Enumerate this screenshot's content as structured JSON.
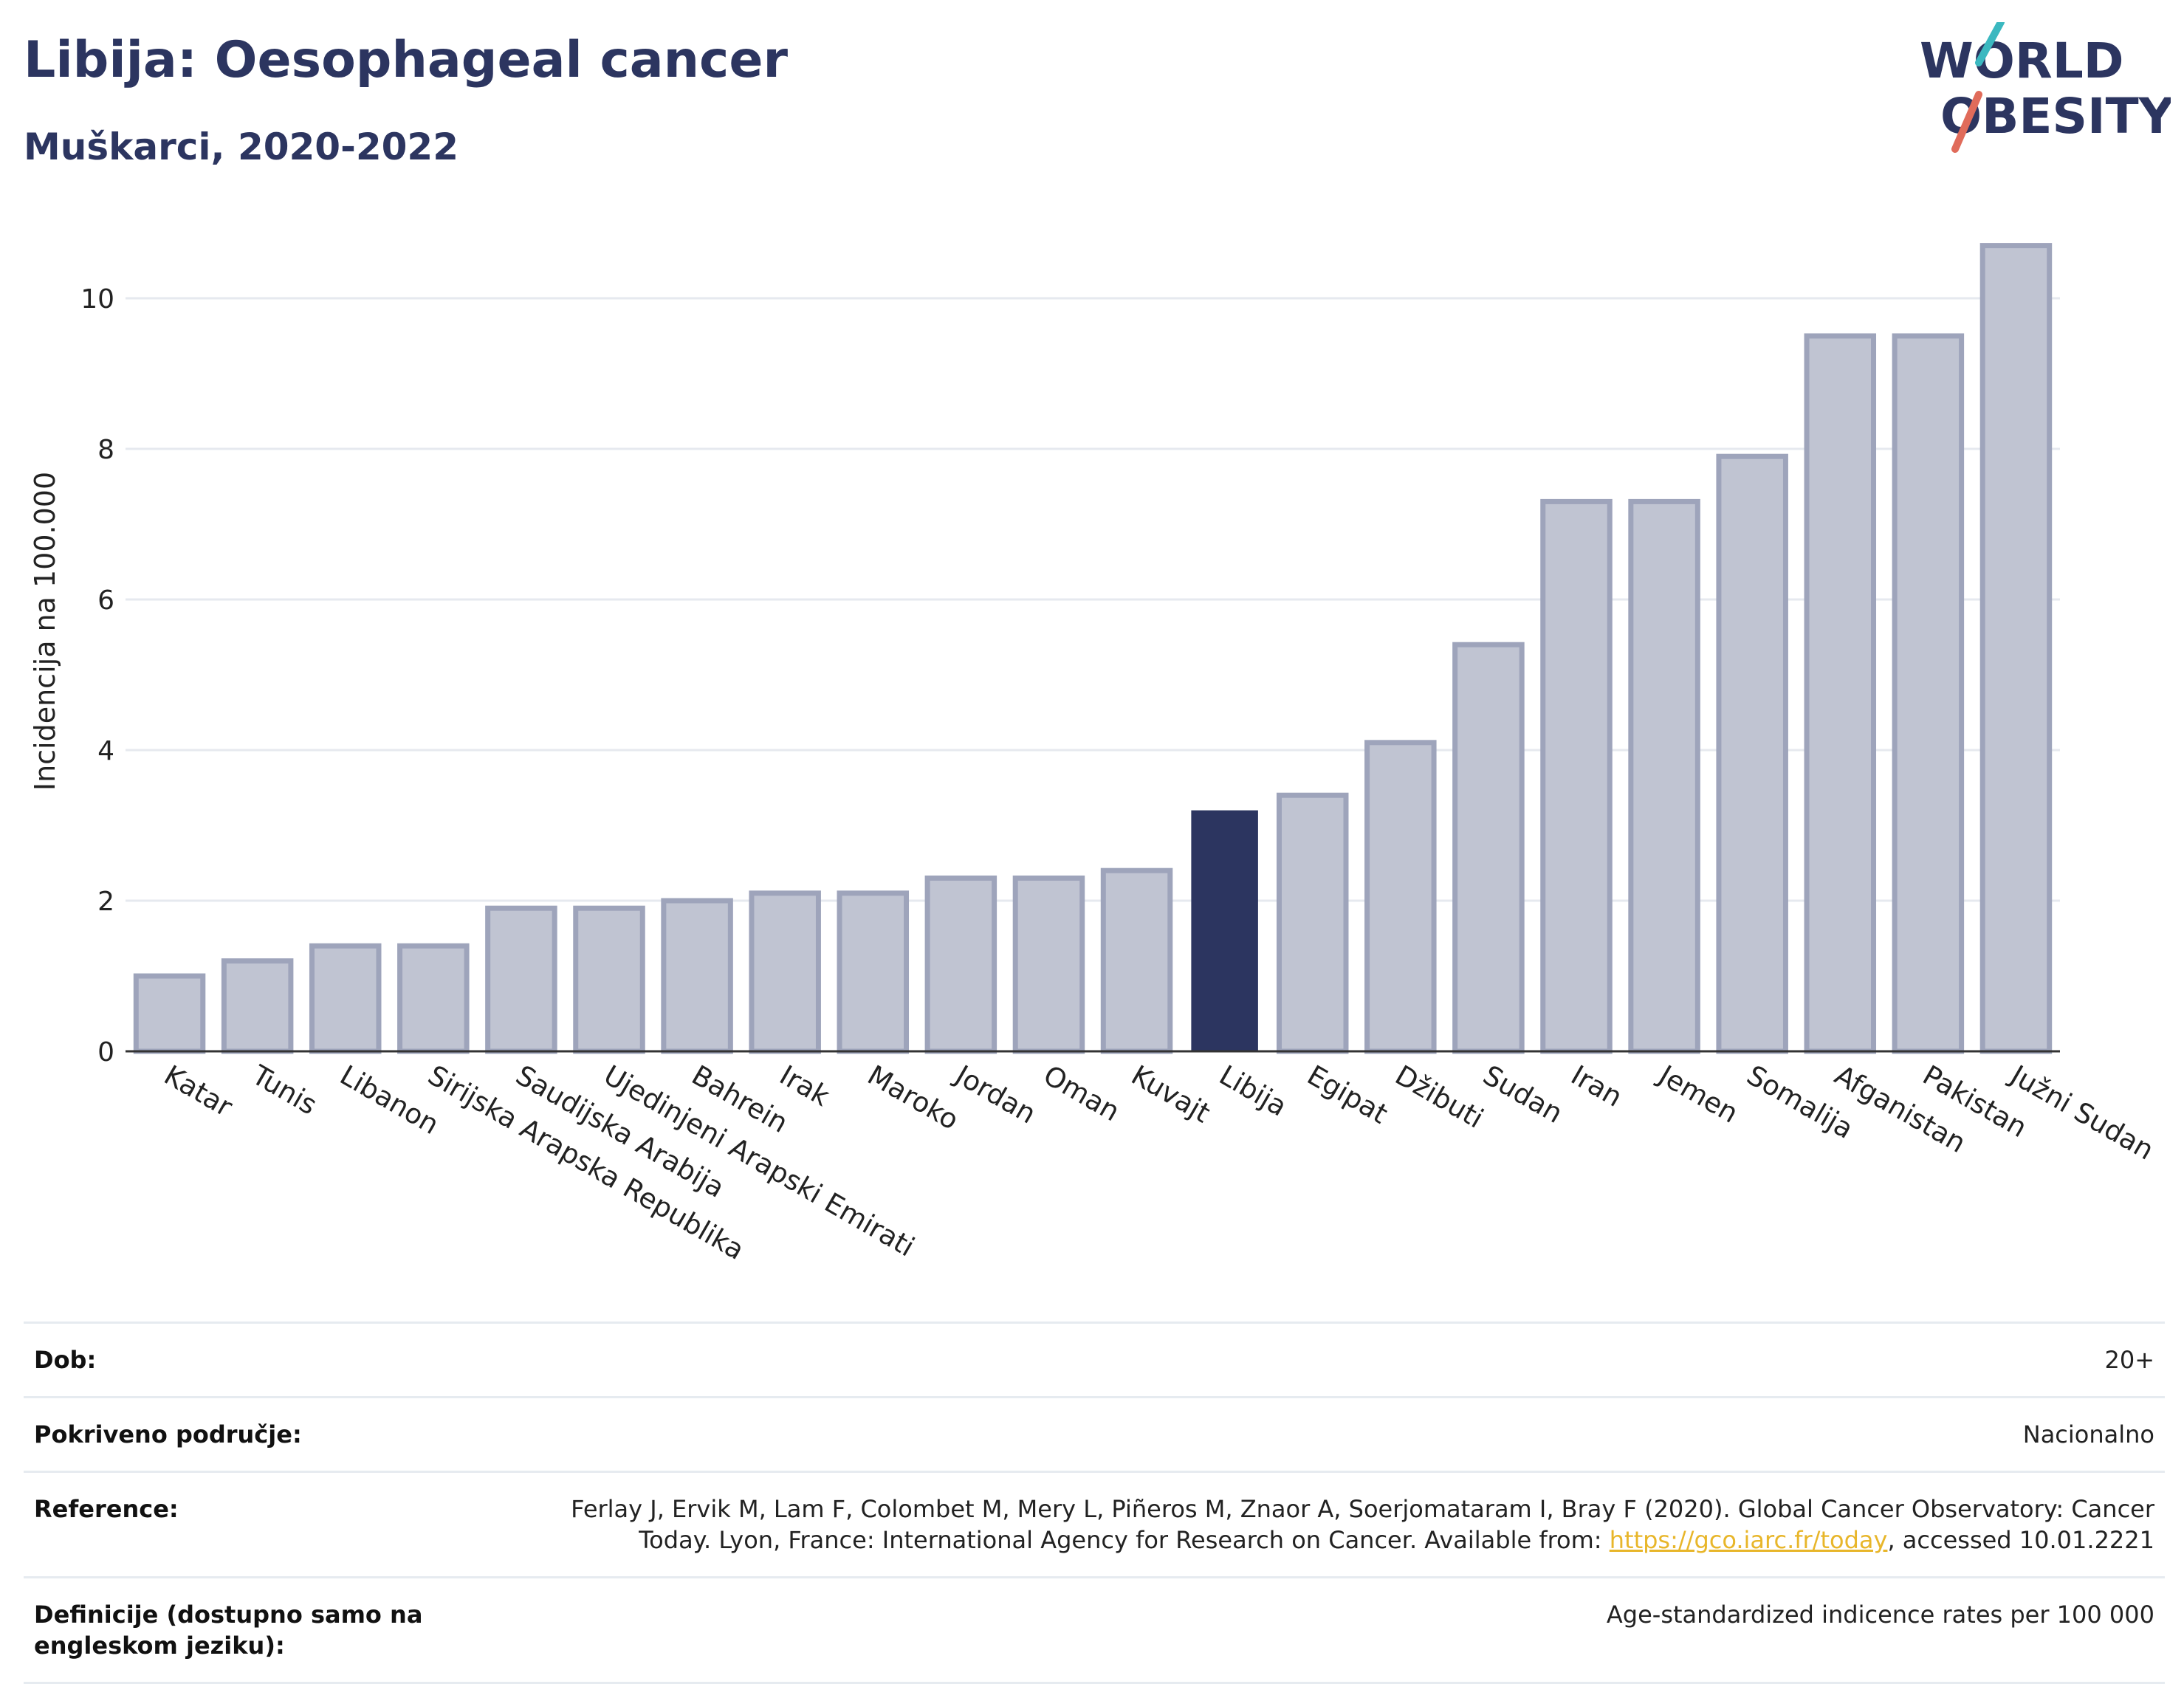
{
  "header": {
    "title": "Libija: Oesophageal cancer",
    "subtitle": "Muškarci, 2020-2022"
  },
  "logo": {
    "line1": "WORLD",
    "line2": "OBESITY"
  },
  "colors": {
    "highlight": "#2c3560",
    "bar": "#c0c4d2",
    "bar_stroke": "#9ea4bb",
    "grid": "#e6e9ef"
  },
  "chart_data": {
    "type": "bar",
    "ylabel": "Incidencija na 100.000",
    "ylim": [
      0,
      11
    ],
    "yticks": [
      0,
      2,
      4,
      6,
      8,
      10
    ],
    "highlight": "Libija",
    "categories": [
      "Katar",
      "Tunis",
      "Libanon",
      "Sirijska Arapska Republika",
      "Saudijska Arabija",
      "Ujedinjeni Arapski Emirati",
      "Bahrein",
      "Irak",
      "Maroko",
      "Jordan",
      "Oman",
      "Kuvajt",
      "Libija",
      "Egipat",
      "Džibuti",
      "Sudan",
      "Iran",
      "Jemen",
      "Somalija",
      "Afganistan",
      "Pakistan",
      "Južni Sudan"
    ],
    "values": [
      1.0,
      1.2,
      1.4,
      1.4,
      1.9,
      1.9,
      2.0,
      2.1,
      2.1,
      2.3,
      2.3,
      2.4,
      3.2,
      3.4,
      4.1,
      5.4,
      7.3,
      7.3,
      7.9,
      9.5,
      9.5,
      10.7
    ]
  },
  "meta": {
    "dob_label": "Dob:",
    "dob_value": "20+",
    "coverage_label": "Pokriveno područje:",
    "coverage_value": "Nacionalno",
    "reference_label": "Reference:",
    "reference_text_1": "Ferlay J, Ervik M, Lam F, Colombet M, Mery L, Piñeros M, Znaor A, Soerjomataram I, Bray F (2020). Global Cancer Observatory: Cancer",
    "reference_text_2": "Today. Lyon, France: International Agency for Research on Cancer. Available from: ",
    "reference_link": "https://gco.iarc.fr/today",
    "reference_text_3": ", accessed 10.01.2221",
    "definitions_label": "Definicije (dostupno samo na engleskom jeziku):",
    "definitions_value": "Age-standardized indicence rates per 100 000"
  }
}
